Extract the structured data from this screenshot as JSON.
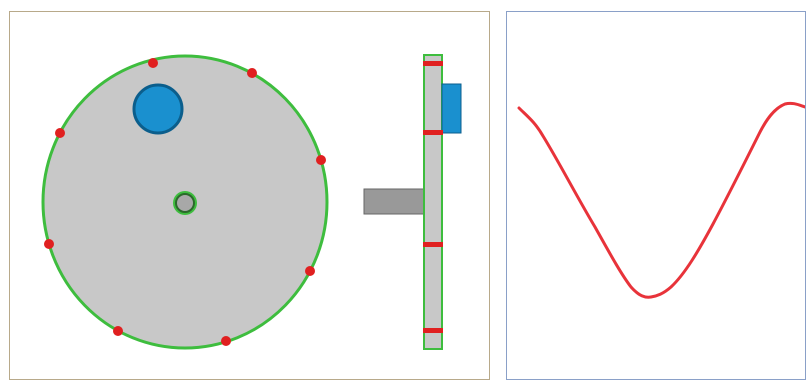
{
  "diagram": {
    "colors": {
      "disk_fill": "#c8c8c8",
      "disk_outline": "#3ebd3e",
      "marker": "#e02020",
      "blue_weight": "#1a90cf",
      "blue_weight_outline": "#0b5e8c",
      "shaft": "#999999",
      "shaft_outline": "#666666",
      "hub_fill": "#a8a8a8",
      "hub_outline": "#2b6a2b",
      "curve": "#e8333a",
      "left_panel_border": "#b8a98a",
      "right_panel_border": "#8aa0c8"
    },
    "icons": {
      "disk": "disk-front-view",
      "side_view": "disk-side-view",
      "shaft": "shaft",
      "weight": "blue-weight",
      "curve": "sine-like-curve"
    },
    "marker_count_front": 8,
    "marker_count_side": 4
  }
}
